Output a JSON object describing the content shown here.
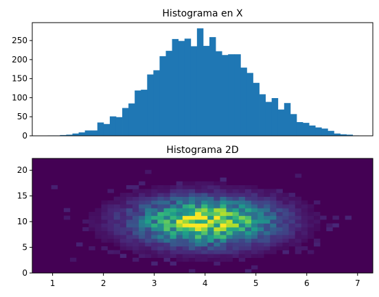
{
  "chart_data": [
    {
      "type": "bar",
      "title": "Histograma en X",
      "xlabel": "",
      "ylabel": "",
      "xlim": [
        0.6,
        7.3
      ],
      "ylim": [
        0,
        297
      ],
      "yticks": [
        0,
        50,
        100,
        150,
        200,
        250
      ],
      "show_x_ticklabels": false,
      "color": "#1f77b4",
      "bin_start": 0.9,
      "bin_width": 0.1225,
      "values": [
        1,
        1,
        2,
        3,
        6,
        9,
        14,
        14,
        35,
        31,
        51,
        49,
        73,
        85,
        119,
        121,
        161,
        172,
        209,
        223,
        254,
        249,
        255,
        235,
        282,
        236,
        259,
        222,
        212,
        214,
        214,
        179,
        165,
        139,
        109,
        89,
        99,
        69,
        86,
        57,
        36,
        34,
        27,
        22,
        19,
        13,
        6,
        4,
        3,
        1
      ]
    },
    {
      "type": "heatmap",
      "title": "Histograma 2D",
      "xlabel": "",
      "ylabel": "",
      "xlim": [
        0.6,
        7.3
      ],
      "ylim": [
        0,
        22.3
      ],
      "xticks": [
        1,
        2,
        3,
        4,
        5,
        6,
        7
      ],
      "yticks": [
        0,
        5,
        10,
        15,
        20
      ],
      "colormap": "viridis",
      "x_bins": 50,
      "y_bins": 30,
      "distribution": {
        "x_center": 4.0,
        "x_sd": 0.9,
        "y_center": 10.0,
        "y_sd": 3.0
      }
    }
  ]
}
